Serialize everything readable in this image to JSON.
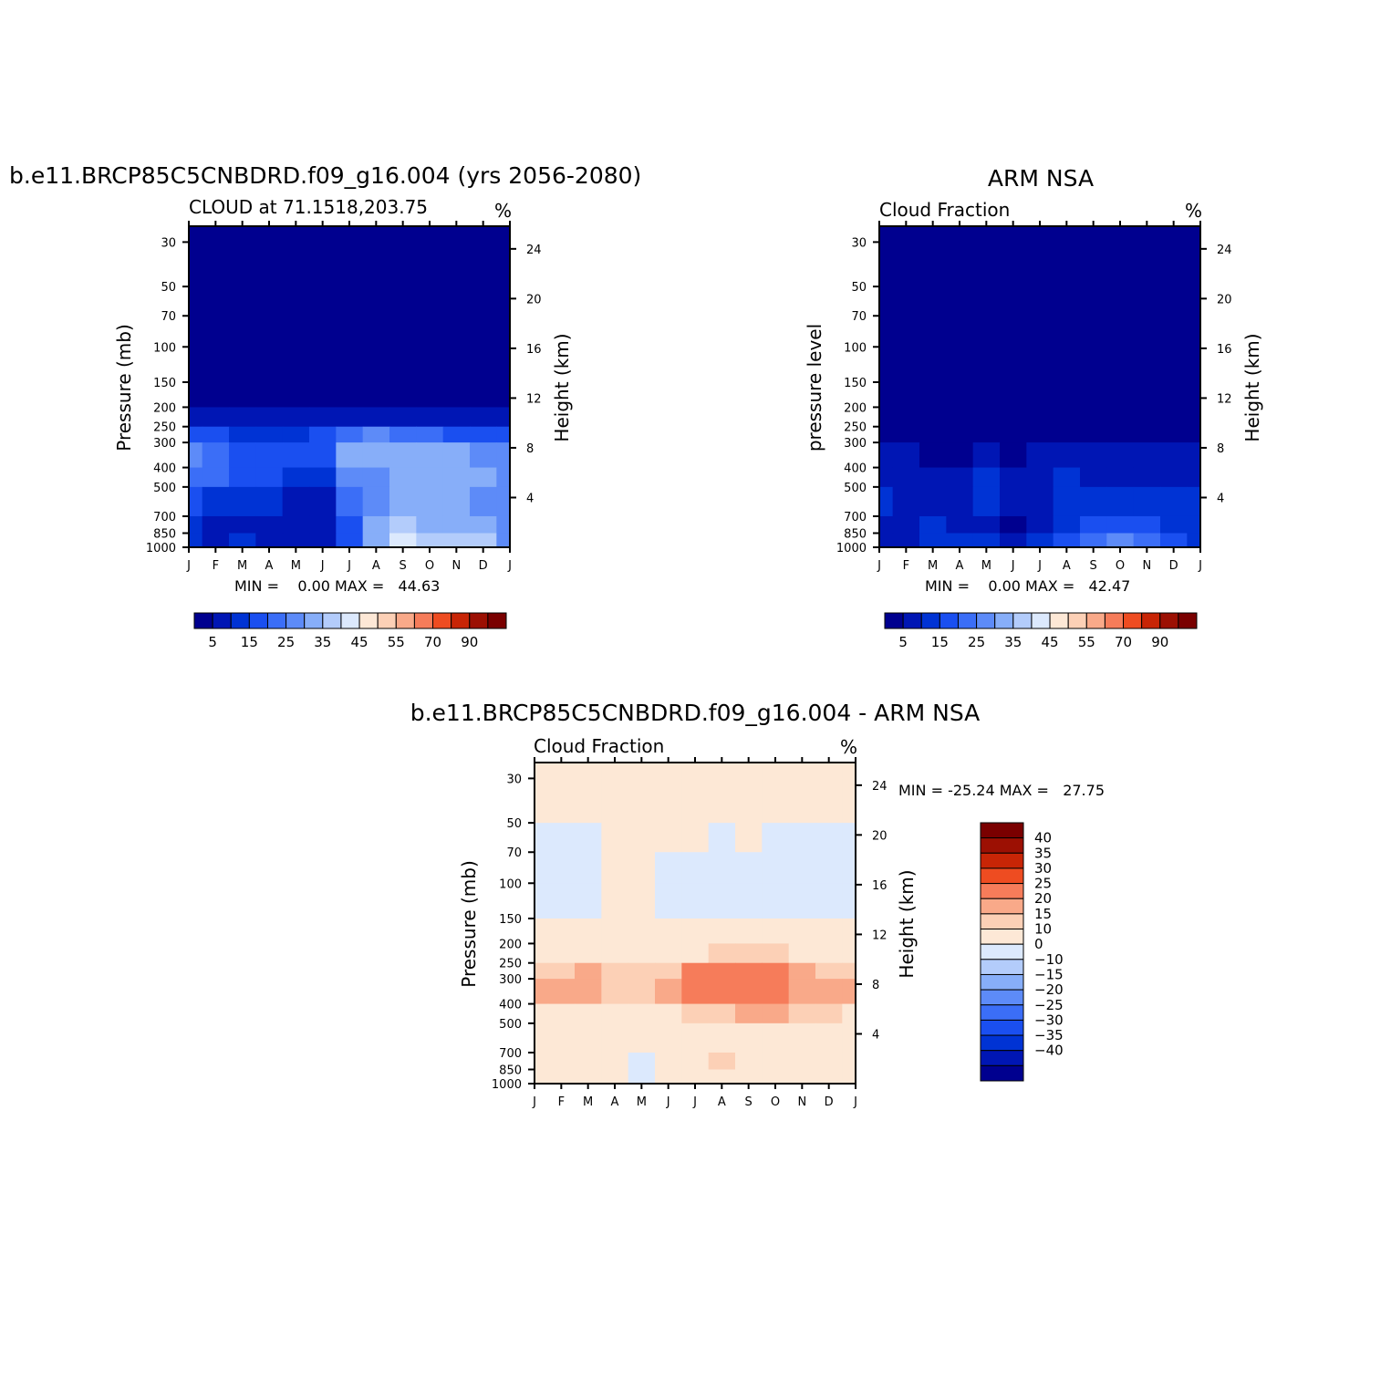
{
  "chart_data": [
    {
      "type": "heatmap",
      "id": "model",
      "title": "b.e11.BRCP85C5CNBDRD.f09_g16.004 (yrs 2056-2080)",
      "left_string": "CLOUD at 71.1518,203.75",
      "units": "%",
      "ylabel": "Pressure (mb)",
      "ylabel_right": "Height (km)",
      "stats": "MIN =    0.00 MAX =   44.63",
      "min": 0.0,
      "max": 44.63,
      "months": [
        "J",
        "F",
        "M",
        "A",
        "M",
        "J",
        "J",
        "A",
        "S",
        "O",
        "N",
        "D",
        "J"
      ],
      "pressure_ticks": [
        30,
        50,
        70,
        100,
        150,
        200,
        250,
        300,
        400,
        500,
        700,
        850,
        1000
      ],
      "height_ticks": [
        4,
        8,
        12,
        16,
        20,
        24
      ],
      "colorbar_labels": [
        "5",
        "15",
        "25",
        "35",
        "45",
        "55",
        "70",
        "90"
      ],
      "boundary": [
        205,
        205,
        208,
        215,
        210,
        207,
        200,
        200,
        202,
        205,
        210,
        210,
        207
      ],
      "vals": [
        [
          30,
          1,
          1,
          1,
          1,
          1,
          1,
          1,
          1,
          1,
          1,
          1,
          1,
          1
        ],
        [
          150,
          1,
          1,
          1,
          1,
          1,
          1,
          1,
          1,
          1,
          1,
          1,
          1,
          1
        ],
        [
          200,
          3,
          3,
          3,
          1,
          2,
          3,
          4,
          4,
          4,
          3,
          3,
          3,
          3
        ],
        [
          250,
          11,
          11,
          10,
          10,
          10,
          11,
          12,
          12,
          13,
          12,
          11,
          11,
          11
        ],
        [
          300,
          24,
          22,
          16,
          15,
          17,
          20,
          32,
          38,
          33,
          30,
          28,
          26,
          25
        ],
        [
          400,
          26,
          22,
          20,
          18,
          16,
          19,
          28,
          30,
          32,
          35,
          34,
          32,
          30
        ],
        [
          500,
          22,
          20,
          16,
          15,
          8,
          10,
          22,
          28,
          30,
          33,
          30,
          28,
          25
        ],
        [
          700,
          15,
          9,
          8,
          10,
          6,
          6,
          20,
          28,
          30,
          30,
          30,
          28,
          25
        ],
        [
          850,
          12,
          8,
          10,
          8,
          4,
          6,
          18,
          36,
          40,
          38,
          36,
          36,
          25
        ],
        [
          1000,
          8,
          8,
          10,
          8,
          6,
          8,
          20,
          30,
          40,
          38,
          36,
          35,
          25
        ]
      ]
    },
    {
      "type": "heatmap",
      "id": "obs",
      "title": "ARM NSA",
      "left_string": "Cloud Fraction",
      "units": "%",
      "ylabel": "pressure level",
      "ylabel_right": "Height (km)",
      "stats": "MIN =    0.00 MAX =   42.47",
      "min": 0.0,
      "max": 42.47,
      "months": [
        "J",
        "F",
        "M",
        "A",
        "M",
        "J",
        "J",
        "A",
        "S",
        "O",
        "N",
        "D",
        "J"
      ],
      "pressure_ticks": [
        30,
        50,
        70,
        100,
        150,
        200,
        250,
        300,
        400,
        500,
        700,
        850,
        1000
      ],
      "height_ticks": [
        4,
        8,
        12,
        16,
        20,
        24
      ],
      "colorbar_labels": [
        "5",
        "15",
        "25",
        "35",
        "45",
        "55",
        "70",
        "90"
      ],
      "boundary": [
        300,
        310,
        340,
        330,
        300,
        310,
        290,
        280,
        290,
        300,
        300,
        290,
        280
      ],
      "vals": [
        [
          30,
          1,
          1,
          1,
          1,
          1,
          1,
          1,
          1,
          1,
          1,
          1,
          1,
          1
        ],
        [
          250,
          1,
          1,
          1,
          1,
          1,
          1,
          1,
          1,
          1,
          1,
          1,
          1,
          1
        ],
        [
          300,
          3,
          3,
          2,
          1,
          3,
          3,
          4,
          5,
          4,
          3,
          3,
          3,
          3
        ],
        [
          400,
          8,
          8,
          6,
          6,
          7,
          6,
          9,
          8,
          8,
          7,
          7,
          7,
          8
        ],
        [
          500,
          11,
          10,
          9,
          9,
          13,
          8,
          10,
          12,
          11,
          11,
          11,
          11,
          11
        ],
        [
          700,
          10,
          9,
          10,
          8,
          10,
          5,
          9,
          11,
          14,
          14,
          13,
          12,
          11
        ],
        [
          850,
          8,
          7,
          10,
          9,
          8,
          4,
          10,
          12,
          16,
          20,
          18,
          15,
          13
        ],
        [
          1000,
          10,
          10,
          12,
          14,
          20,
          12,
          18,
          22,
          26,
          30,
          26,
          20,
          15
        ]
      ]
    },
    {
      "type": "heatmap",
      "id": "diff",
      "title": "b.e11.BRCP85C5CNBDRD.f09_g16.004 - ARM NSA",
      "left_string": "Cloud Fraction",
      "units": "%",
      "ylabel": "Pressure (mb)",
      "ylabel_right": "Height (km)",
      "stats": "MIN = -25.24 MAX =   27.75",
      "min": -25.24,
      "max": 27.75,
      "months": [
        "J",
        "F",
        "M",
        "A",
        "M",
        "J",
        "J",
        "A",
        "S",
        "O",
        "N",
        "D",
        "J"
      ],
      "pressure_ticks": [
        30,
        50,
        70,
        100,
        150,
        200,
        250,
        300,
        400,
        500,
        700,
        850,
        1000
      ],
      "height_ticks": [
        4,
        8,
        12,
        16,
        20,
        24
      ],
      "colorbar_labels": [
        "40",
        "35",
        "30",
        "25",
        "20",
        "15",
        "10",
        "0",
        "-10",
        "-15",
        "-20",
        "-25",
        "-30",
        "-35",
        "-40"
      ],
      "vals": [
        [
          30,
          1,
          1,
          1,
          1,
          1,
          1,
          1,
          1,
          1,
          1,
          1,
          1,
          1
        ],
        [
          50,
          -1,
          1,
          1,
          1,
          1,
          1,
          1,
          1,
          1,
          1,
          1,
          -1,
          -1
        ],
        [
          70,
          -2,
          -2,
          -2,
          1,
          1,
          1,
          1,
          -3,
          1,
          -2,
          -2,
          -2,
          -2
        ],
        [
          100,
          -2,
          -2,
          -3,
          -1,
          -1,
          -2,
          -2,
          -2,
          -2,
          -2,
          -3,
          -2,
          -2
        ],
        [
          150,
          -1,
          1,
          1,
          1,
          1,
          1,
          1,
          1,
          1,
          1,
          -1,
          1,
          -1
        ],
        [
          200,
          3,
          3,
          3,
          3,
          3,
          3,
          5,
          7,
          7,
          6,
          5,
          4,
          3
        ],
        [
          250,
          11,
          10,
          9,
          9,
          9,
          10,
          14,
          17,
          18,
          17,
          14,
          10,
          9
        ],
        [
          300,
          17,
          16,
          23,
          13,
          14,
          18,
          26,
          27,
          24,
          24,
          19,
          16,
          17
        ],
        [
          400,
          13,
          14,
          13,
          12,
          13,
          14,
          17,
          20,
          20,
          21,
          19,
          16,
          14
        ],
        [
          500,
          6,
          5,
          5,
          4,
          5,
          5,
          5,
          8,
          10,
          9,
          7,
          5,
          5
        ],
        [
          700,
          3,
          3,
          3,
          3,
          -3,
          3,
          5,
          9,
          8,
          5,
          5,
          4,
          3
        ],
        [
          850,
          3,
          3,
          3,
          2,
          -5,
          3,
          7,
          12,
          10,
          5,
          7,
          12,
          3
        ],
        [
          1000,
          2,
          2,
          2,
          1,
          -14,
          1,
          3,
          5,
          7,
          3,
          1,
          2,
          2
        ]
      ]
    }
  ],
  "palettes": {
    "seq": [
      "#00008f",
      "#0016b4",
      "#0033d4",
      "#1a4ff0",
      "#3b6ef7",
      "#5d8bf8",
      "#87aef9",
      "#b3ccfb",
      "#dce9fd",
      "#fde8d6",
      "#fcd0b6",
      "#f9a989",
      "#f67c5a",
      "#ee4c21",
      "#c82506",
      "#9c1003",
      "#7a0000"
    ],
    "div_neg": [
      "#dce9fd",
      "#b3ccfb",
      "#87aef9",
      "#5d8bf8",
      "#3b6ef7",
      "#1a4ff0",
      "#0033d4",
      "#0016b4",
      "#00008f"
    ],
    "div_pos": [
      "#fde8d6",
      "#fcd0b6",
      "#f9a989",
      "#f67c5a",
      "#ee4c21",
      "#c82506",
      "#9c1003",
      "#7a0000"
    ]
  }
}
